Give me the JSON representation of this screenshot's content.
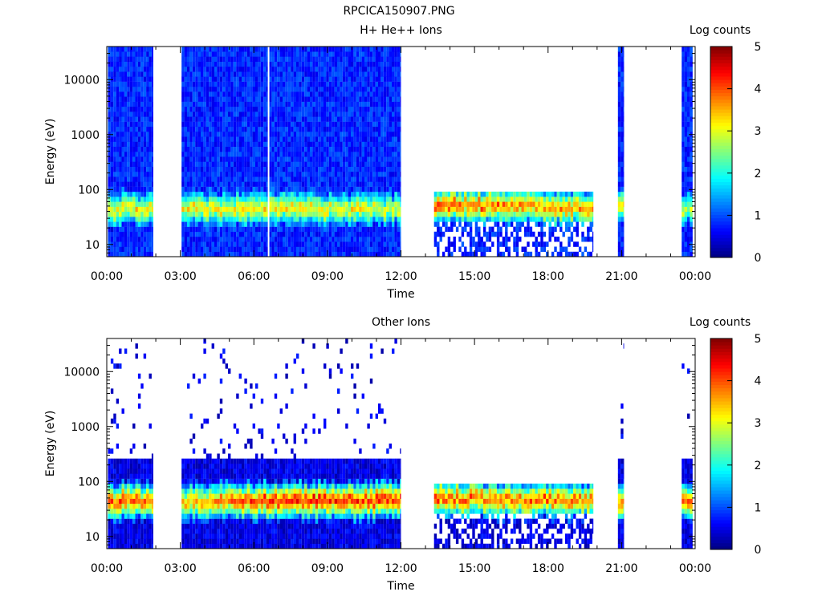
{
  "file_title": "RPCICA150907.PNG",
  "chart_data": [
    {
      "type": "heatmap",
      "title": "H+ He++ Ions",
      "xlabel": "Time",
      "ylabel": "Energy (eV)",
      "yscale": "log",
      "ylim": [
        6,
        40000
      ],
      "xlim_hours": [
        0,
        24
      ],
      "x_ticks": [
        "00:00",
        "03:00",
        "06:00",
        "09:00",
        "12:00",
        "15:00",
        "18:00",
        "21:00",
        "00:00"
      ],
      "y_ticks": [
        10,
        100,
        1000,
        10000
      ],
      "y_tick_labels": [
        "10",
        "100",
        "1000",
        "10000"
      ],
      "colorbar": {
        "label": "Log counts",
        "min": 0,
        "max": 5,
        "tick_labels": [
          "0",
          "1",
          "2",
          "3",
          "4",
          "5"
        ]
      },
      "data_intervals_hours": [
        [
          0.05,
          1.9
        ],
        [
          3.05,
          12.0
        ],
        [
          13.35,
          19.85
        ],
        [
          20.85,
          21.1
        ],
        [
          23.45,
          23.9
        ]
      ],
      "gap_lines_hours": [
        6.6
      ],
      "peak_energy_ev": [
        [
          0.0,
          45
        ],
        [
          2.0,
          45
        ],
        [
          12.0,
          45
        ],
        [
          13.35,
          55
        ],
        [
          19.85,
          45
        ],
        [
          24.0,
          45
        ]
      ],
      "peak_log_counts": [
        [
          0.0,
          3.2
        ],
        [
          2.0,
          3.3
        ],
        [
          6.0,
          3.4
        ],
        [
          12.0,
          3.1
        ],
        [
          13.35,
          4.2
        ],
        [
          16.0,
          3.9
        ],
        [
          19.85,
          3.7
        ],
        [
          21.0,
          3.4
        ],
        [
          24.0,
          2.8
        ]
      ],
      "background_log_counts": 0.8
    },
    {
      "type": "heatmap",
      "title": "Other Ions",
      "xlabel": "Time",
      "ylabel": "Energy (eV)",
      "yscale": "log",
      "ylim": [
        6,
        40000
      ],
      "xlim_hours": [
        0,
        24
      ],
      "x_ticks": [
        "00:00",
        "03:00",
        "06:00",
        "09:00",
        "12:00",
        "15:00",
        "18:00",
        "21:00",
        "00:00"
      ],
      "y_ticks": [
        10,
        100,
        1000,
        10000
      ],
      "y_tick_labels": [
        "10",
        "100",
        "1000",
        "10000"
      ],
      "colorbar": {
        "label": "Log counts",
        "min": 0,
        "max": 5,
        "tick_labels": [
          "0",
          "1",
          "2",
          "3",
          "4",
          "5"
        ]
      },
      "data_intervals_hours": [
        [
          0.05,
          1.9
        ],
        [
          3.05,
          12.0
        ],
        [
          13.35,
          19.85
        ],
        [
          20.85,
          21.1
        ],
        [
          23.45,
          23.9
        ]
      ],
      "gap_lines_hours": [],
      "peak_energy_ev": [
        [
          0.0,
          45
        ],
        [
          12.0,
          45
        ],
        [
          13.35,
          50
        ],
        [
          19.85,
          45
        ],
        [
          24.0,
          45
        ]
      ],
      "peak_log_counts": [
        [
          0.0,
          4.3
        ],
        [
          3.0,
          3.6
        ],
        [
          6.5,
          4.4
        ],
        [
          12.0,
          4.3
        ],
        [
          13.35,
          4.1
        ],
        [
          19.85,
          3.9
        ],
        [
          24.0,
          4.0
        ]
      ],
      "background_log_counts": 0.0
    }
  ]
}
